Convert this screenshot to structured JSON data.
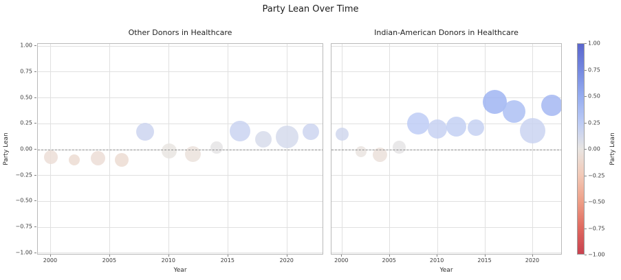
{
  "suptitle": "Party Lean Over Time",
  "chart_data": {
    "type": "scatter",
    "title": "Party Lean Over Time",
    "xlabel": "Year",
    "ylabel": "Party Lean",
    "xlim": [
      1998.9,
      2023.1
    ],
    "ylim": [
      -1.02,
      1.02
    ],
    "xticks": [
      2000,
      2005,
      2010,
      2015,
      2020
    ],
    "yticks": [
      1.0,
      0.75,
      0.5,
      0.25,
      0.0,
      -0.25,
      -0.5,
      -0.75,
      -1.0
    ],
    "ytick_labels": [
      "1.00",
      "0.75",
      "0.50",
      "0.25",
      "0.00",
      "−0.25",
      "−0.50",
      "−0.75",
      "−1.00"
    ],
    "grid": true,
    "zero_reference_line": 0.0,
    "bubble_size_meaning": "bubble area varies by group/year (unlabeled in figure)",
    "subplots": [
      {
        "title": "Other Donors in Healthcare",
        "points": [
          {
            "year": 2000,
            "party_lean": -0.07,
            "size": 20
          },
          {
            "year": 2002,
            "party_lean": -0.1,
            "size": 16
          },
          {
            "year": 2004,
            "party_lean": -0.08,
            "size": 21
          },
          {
            "year": 2006,
            "party_lean": -0.1,
            "size": 20
          },
          {
            "year": 2008,
            "party_lean": 0.17,
            "size": 26
          },
          {
            "year": 2010,
            "party_lean": -0.01,
            "size": 22
          },
          {
            "year": 2012,
            "party_lean": -0.04,
            "size": 23
          },
          {
            "year": 2014,
            "party_lean": 0.02,
            "size": 18
          },
          {
            "year": 2016,
            "party_lean": 0.18,
            "size": 30
          },
          {
            "year": 2018,
            "party_lean": 0.1,
            "size": 24
          },
          {
            "year": 2020,
            "party_lean": 0.12,
            "size": 33
          },
          {
            "year": 2022,
            "party_lean": 0.17,
            "size": 24
          }
        ]
      },
      {
        "title": "Indian-American Donors in Healthcare",
        "points": [
          {
            "year": 2000,
            "party_lean": 0.15,
            "size": 19
          },
          {
            "year": 2002,
            "party_lean": -0.02,
            "size": 16
          },
          {
            "year": 2004,
            "party_lean": -0.05,
            "size": 21
          },
          {
            "year": 2006,
            "party_lean": 0.02,
            "size": 19
          },
          {
            "year": 2008,
            "party_lean": 0.25,
            "size": 32
          },
          {
            "year": 2010,
            "party_lean": 0.2,
            "size": 28
          },
          {
            "year": 2012,
            "party_lean": 0.22,
            "size": 29
          },
          {
            "year": 2014,
            "party_lean": 0.21,
            "size": 24
          },
          {
            "year": 2016,
            "party_lean": 0.46,
            "size": 35
          },
          {
            "year": 2018,
            "party_lean": 0.37,
            "size": 33
          },
          {
            "year": 2020,
            "party_lean": 0.18,
            "size": 37
          },
          {
            "year": 2022,
            "party_lean": 0.43,
            "size": 31
          }
        ]
      }
    ],
    "colorbar": {
      "label": "Party Lean",
      "tick_labels": [
        "1.00",
        "0.75",
        "0.50",
        "0.25",
        "0.00",
        "−0.25",
        "−0.50",
        "−0.75",
        "−1.00"
      ],
      "tick_values": [
        1.0,
        0.75,
        0.5,
        0.25,
        0.0,
        -0.25,
        -0.5,
        -0.75,
        -1.0
      ],
      "colormap": "coolwarm_r",
      "stops": [
        {
          "v": 1.0,
          "c": "#5a66cd"
        },
        {
          "v": 0.75,
          "c": "#7589e0"
        },
        {
          "v": 0.5,
          "c": "#96adf0"
        },
        {
          "v": 0.25,
          "c": "#bccbf5"
        },
        {
          "v": 0.0,
          "c": "#e8e5e2"
        },
        {
          "v": -0.25,
          "c": "#f2c9b7"
        },
        {
          "v": -0.5,
          "c": "#ee9f87"
        },
        {
          "v": -0.75,
          "c": "#e06a60"
        },
        {
          "v": -1.0,
          "c": "#c8414f"
        }
      ]
    }
  },
  "colors": {
    "background": "#ffffff",
    "gridline": "#e0e0e0",
    "spine": "#b9b9b9",
    "zero_line": "#8c8c8c",
    "tick_text": "#3a3a3a",
    "title_text": "#1c1c1c"
  }
}
